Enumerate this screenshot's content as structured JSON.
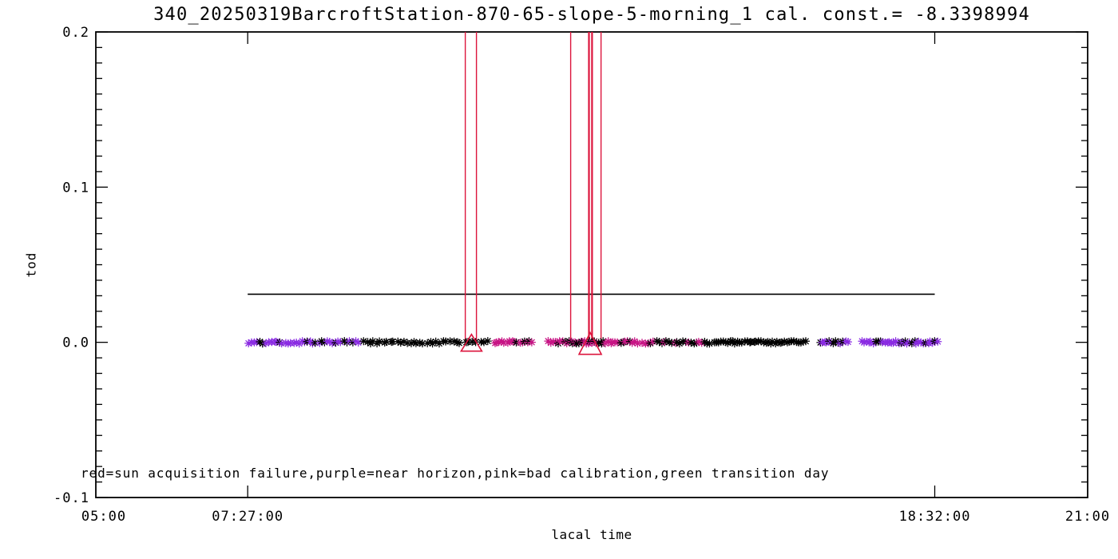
{
  "chart_data": {
    "type": "scatter",
    "title": "340_20250319BarcroftStation-870-65-slope-5-morning_1 cal. const.= -8.3398994",
    "xlabel": "lacal time",
    "ylabel": "tod",
    "legend_note": "red=sun acquisition failure,purple=near horizon,pink=bad calibration,green transition day",
    "xlim": [
      5,
      21
    ],
    "ylim": [
      -0.1,
      0.2
    ],
    "x_major_ticks": [
      {
        "hour": 5,
        "label": "05:00"
      },
      {
        "hour": 7.45,
        "label": "07:27:00"
      },
      {
        "hour": 18.5333,
        "label": "18:32:00"
      },
      {
        "hour": 21,
        "label": "21:00"
      }
    ],
    "y_major_ticks": [
      {
        "value": -0.1,
        "label": "-0.1"
      },
      {
        "value": 0.0,
        "label": "0.0"
      },
      {
        "value": 0.1,
        "label": "0.1"
      },
      {
        "value": 0.2,
        "label": "0.2"
      }
    ],
    "y_minor_step": 0.01,
    "grid": false,
    "colors": {
      "black": "#000000",
      "purple": "#8A2BE2",
      "pink": "#C71585",
      "red": "#DC143C",
      "green": "#008000"
    },
    "baseline_value": 0.0,
    "reference_line": {
      "y": 0.031,
      "from_hour": 7.45,
      "to_hour": 18.5333,
      "color": "black"
    },
    "failure_vlines": {
      "color": "red",
      "y_top": 0.2,
      "y_bottom": 0.0,
      "lines": [
        {
          "hour": 10.96,
          "w": 1.4
        },
        {
          "hour": 11.14,
          "w": 1.4
        },
        {
          "hour": 12.66,
          "w": 1.4
        },
        {
          "hour": 12.955,
          "w": 2.2
        },
        {
          "hour": 13.005,
          "w": 2.2
        },
        {
          "hour": 13.15,
          "w": 1.4
        }
      ]
    },
    "failure_triangles": [
      {
        "hour": 11.06,
        "value": 0.0,
        "half_width": 13,
        "apex_dy": -10,
        "base_dy": 11
      },
      {
        "hour": 12.975,
        "value": 0.0,
        "half_width": 14,
        "apex_dy": -12,
        "base_dy": 15
      }
    ],
    "point_clusters": [
      {
        "from": 7.45,
        "to": 9.25,
        "n": 40,
        "colors": {
          "purple": 0.62,
          "black": 0.38
        }
      },
      {
        "from": 9.3,
        "to": 10.9,
        "n": 30,
        "colors": {
          "black": 1
        }
      },
      {
        "from": 10.93,
        "to": 11.35,
        "n": 7,
        "colors": {
          "black": 1
        }
      },
      {
        "from": 11.41,
        "to": 12.06,
        "n": 16,
        "colors": {
          "pink": 0.55,
          "black": 0.45
        }
      },
      {
        "from": 12.28,
        "to": 12.55,
        "n": 7,
        "colors": {
          "pink": 0.6,
          "black": 0.4
        }
      },
      {
        "from": 12.56,
        "to": 13.05,
        "n": 16,
        "colors": {
          "pink": 0.5,
          "black": 0.5
        }
      },
      {
        "from": 13.05,
        "to": 13.76,
        "n": 18,
        "colors": {
          "pink": 0.55,
          "black": 0.45
        }
      },
      {
        "from": 13.8,
        "to": 14.92,
        "n": 26,
        "colors": {
          "pink": 0.45,
          "black": 0.55
        }
      },
      {
        "from": 14.95,
        "to": 16.47,
        "n": 40,
        "colors": {
          "black": 1
        }
      },
      {
        "from": 16.66,
        "to": 17.15,
        "n": 13,
        "colors": {
          "black": 0.5,
          "purple": 0.5
        }
      },
      {
        "from": 17.34,
        "to": 18.59,
        "n": 34,
        "colors": {
          "purple": 0.78,
          "black": 0.22
        }
      }
    ]
  }
}
